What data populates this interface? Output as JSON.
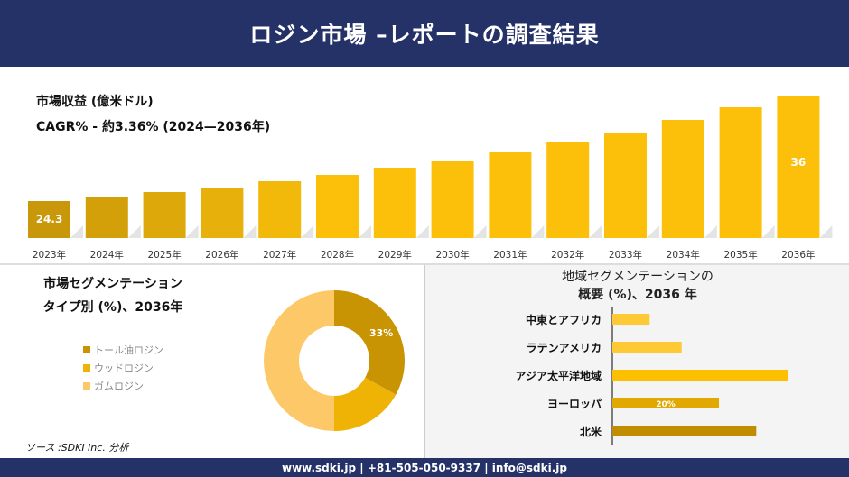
{
  "header": {
    "title": "ロジン市場 –レポートの調査結果"
  },
  "revenue": {
    "title": "市場収益 (億米ドル)",
    "cagr": "CAGR% - 約3.36% (2024—2036年)"
  },
  "type_segment": {
    "title_line1": "市場セグメンテーション",
    "title_line2": "タイプ別 (%)、2036年"
  },
  "region_segment": {
    "title_line1": "地域セグメンテーションの",
    "title_line2": "概要 (%)、2036 年"
  },
  "source": "ソース :SDKI Inc. 分析",
  "footer": {
    "text": "www.sdki.jp | +81-505-050-9337 | info@sdki.jp"
  },
  "chart_data": [
    {
      "type": "bar",
      "title": "市場収益 (億米ドル)",
      "categories": [
        "2023年",
        "2024年",
        "2025年",
        "2026年",
        "2027年",
        "2028年",
        "2029年",
        "2030年",
        "2031年",
        "2032年",
        "2033年",
        "2034年",
        "2035年",
        "2036年"
      ],
      "values": [
        24.3,
        24.8,
        25.3,
        25.8,
        26.5,
        27.2,
        28.0,
        28.8,
        29.7,
        30.9,
        31.9,
        33.3,
        34.7,
        36
      ],
      "data_labels": {
        "0": "24.3",
        "13": "36"
      },
      "ylim": [
        20.2,
        37
      ],
      "grid": false,
      "colors": {
        "early": "#c9980a",
        "late": "#fcc00a"
      }
    },
    {
      "type": "pie",
      "variant": "donut",
      "title": "タイプ別 (%)、2036年",
      "labels": [
        "トール油ロジン",
        "ウッドロジン",
        "ガムロジン"
      ],
      "values": [
        33,
        17,
        50
      ],
      "data_labels": {
        "0": "33%"
      },
      "colors": [
        "#c99404",
        "#eeb305",
        "#fdc867"
      ],
      "legend": "left"
    },
    {
      "type": "bar",
      "orientation": "horizontal",
      "title": "概要 (%)、2036 年",
      "categories": [
        "中東とアフリカ",
        "ラテンアメリカ",
        "アジア太平洋地域",
        "ヨーロッパ",
        "北米"
      ],
      "values": [
        7,
        13,
        33,
        20,
        27
      ],
      "data_labels": {
        "3": "20%"
      },
      "colors": [
        "#fdc935",
        "#fdc935",
        "#fdc000",
        "#e0a800",
        "#c08c00"
      ]
    }
  ]
}
